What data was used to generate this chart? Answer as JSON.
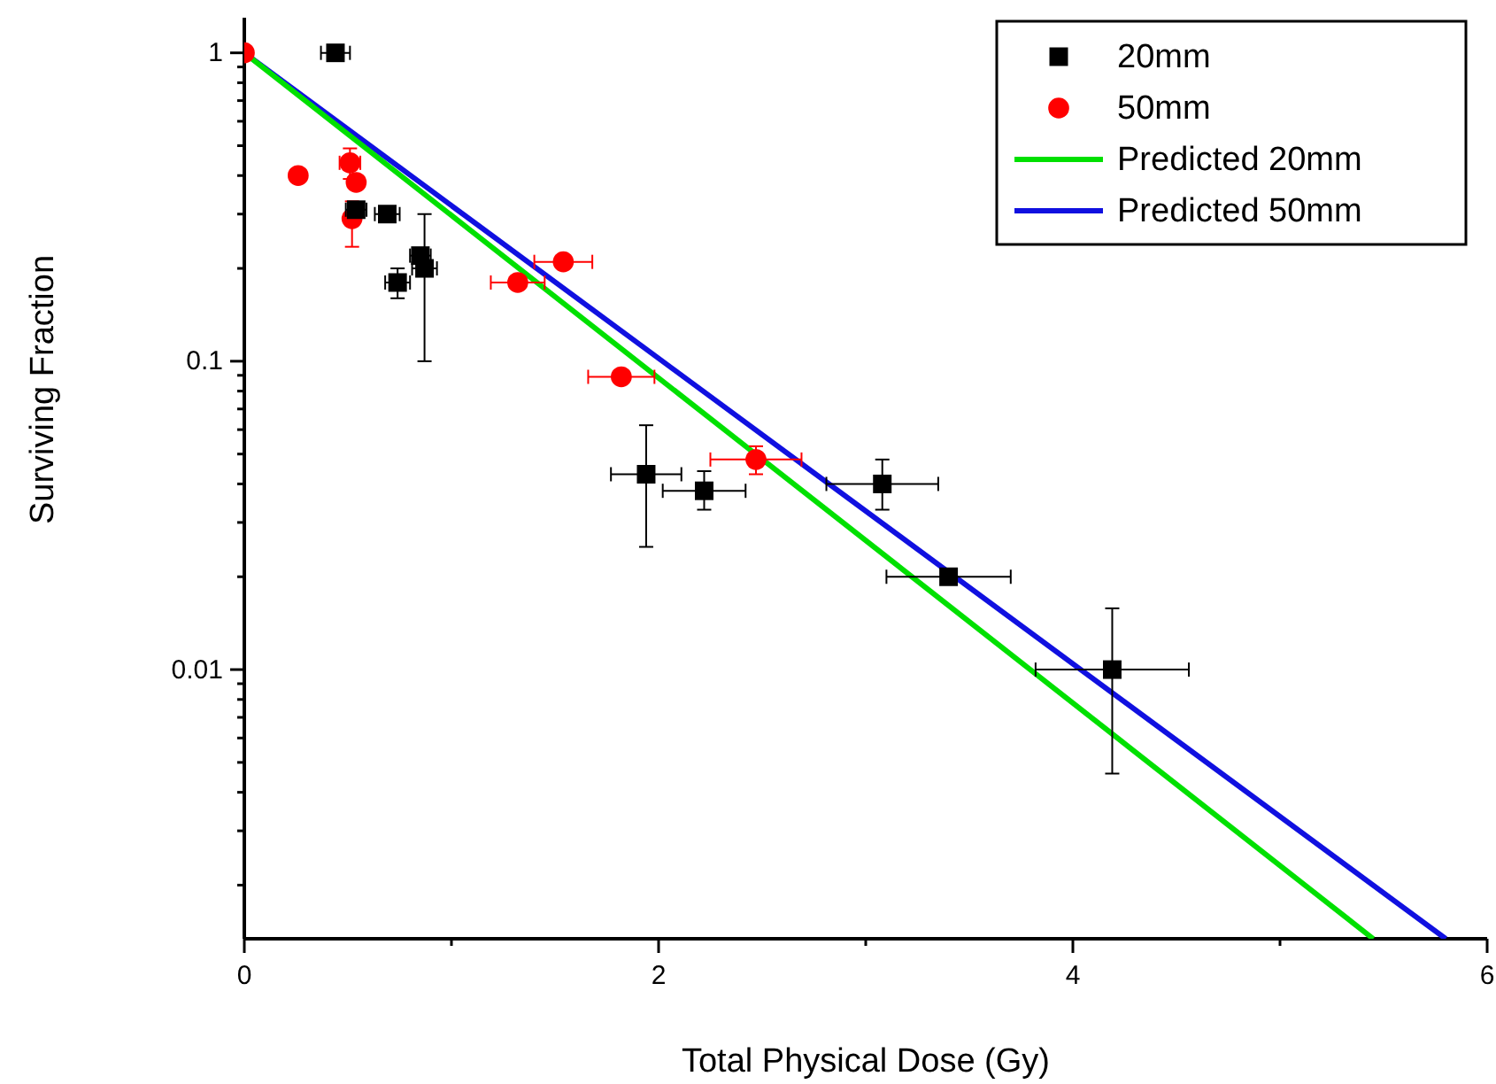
{
  "chart_data": {
    "type": "scatter",
    "xlabel": "Total Physical Dose (Gy)",
    "ylabel": "Surviving Fraction",
    "log": "y",
    "xlim": [
      0,
      6
    ],
    "xticks": [
      0,
      {
        "value": 1,
        "label": null
      },
      2,
      {
        "value": 3,
        "label": null
      },
      4,
      {
        "value": 5,
        "label": null
      },
      6
    ],
    "ylim": [
      0.00134,
      1.3
    ],
    "yticks": [
      {
        "value": 0.002,
        "label": null
      },
      {
        "value": 0.003,
        "label": null
      },
      {
        "value": 0.004,
        "label": null
      },
      {
        "value": 0.005,
        "label": null
      },
      {
        "value": 0.006,
        "label": null
      },
      {
        "value": 0.007,
        "label": null
      },
      {
        "value": 0.008,
        "label": null
      },
      {
        "value": 0.009,
        "label": null
      },
      0.01,
      {
        "value": 0.02,
        "label": null
      },
      {
        "value": 0.03,
        "label": null
      },
      {
        "value": 0.04,
        "label": null
      },
      {
        "value": 0.05,
        "label": null
      },
      {
        "value": 0.06,
        "label": null
      },
      {
        "value": 0.07,
        "label": null
      },
      {
        "value": 0.08,
        "label": null
      },
      {
        "value": 0.09,
        "label": null
      },
      0.1,
      {
        "value": 0.2,
        "label": null
      },
      {
        "value": 0.3,
        "label": null
      },
      {
        "value": 0.4,
        "label": null
      },
      {
        "value": 0.5,
        "label": null
      },
      {
        "value": 0.6,
        "label": null
      },
      {
        "value": 0.7,
        "label": null
      },
      {
        "value": 0.8,
        "label": null
      },
      {
        "value": 0.9,
        "label": null
      },
      1
    ],
    "grid": false,
    "legend": "top right",
    "series": [
      {
        "name": "20mm",
        "marker": "square",
        "color": "#000000",
        "x": [
          0.44,
          0.54,
          0.69,
          0.74,
          0.85,
          0.87,
          1.94,
          2.22,
          3.08,
          3.4,
          4.19
        ],
        "values": [
          1.0,
          0.31,
          0.3,
          0.18,
          0.22,
          0.2,
          0.043,
          0.038,
          0.04,
          0.02,
          0.01
        ],
        "errors": [
          null,
          null,
          null,
          [
            0.16,
            0.2
          ],
          null,
          [
            0.1,
            0.3
          ],
          [
            0.025,
            0.062
          ],
          [
            0.033,
            0.044
          ],
          [
            0.033,
            0.048
          ],
          null,
          [
            0.0046,
            0.0158
          ]
        ],
        "xerrors": [
          0.07,
          0.05,
          0.06,
          0.06,
          0.05,
          0.06,
          0.17,
          0.2,
          0.27,
          0.3,
          0.37
        ]
      },
      {
        "name": "50mm",
        "marker": "circle",
        "color": "#ff0000",
        "x": [
          0,
          0.26,
          0.51,
          0.54,
          0.52,
          1.32,
          1.54,
          1.82,
          2.47
        ],
        "values": [
          1.0,
          0.4,
          0.44,
          0.38,
          0.29,
          0.18,
          0.21,
          0.089,
          0.048
        ],
        "errors": [
          null,
          null,
          0.05,
          null,
          [
            0.235,
            0.33
          ],
          null,
          null,
          null,
          [
            0.043,
            0.053
          ]
        ],
        "xerrors": [
          null,
          null,
          0.05,
          null,
          null,
          0.13,
          0.14,
          0.16,
          0.22
        ]
      },
      {
        "name": "Predicted 20mm",
        "type": "line",
        "marker": "none",
        "color": "#00e000",
        "x": [
          0,
          5.45
        ],
        "values": [
          1.0,
          0.00134
        ]
      },
      {
        "name": "Predicted 50mm",
        "type": "line",
        "marker": "none",
        "color": "#1010e0",
        "x": [
          0,
          5.8
        ],
        "values": [
          1.0,
          0.00134
        ]
      }
    ]
  }
}
